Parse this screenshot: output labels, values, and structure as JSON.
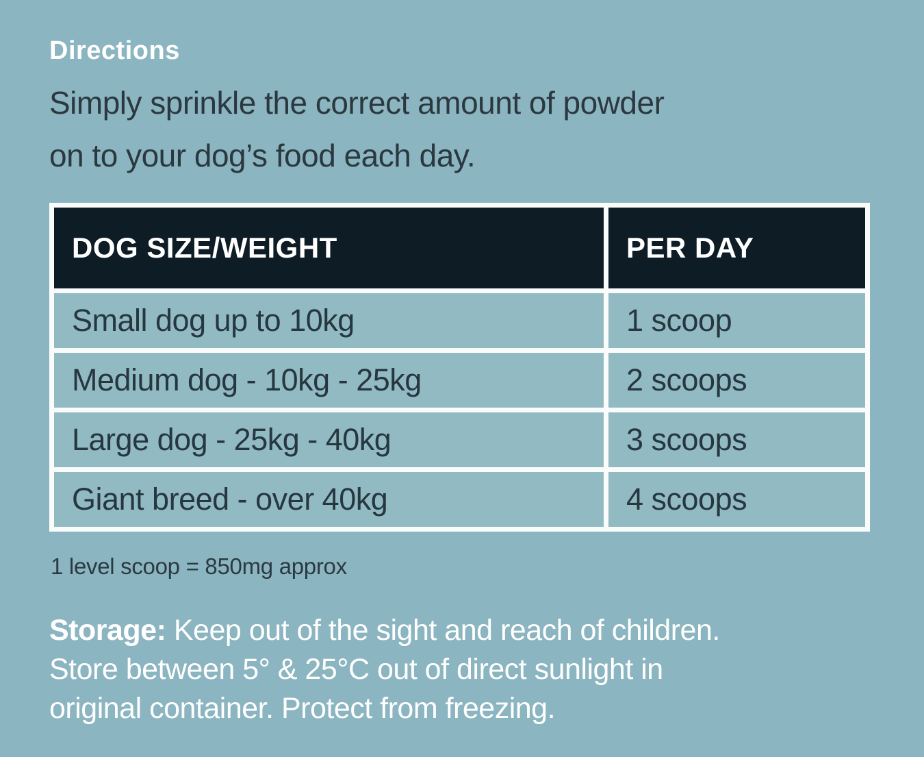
{
  "label": {
    "heading": "Directions",
    "intro_lines": [
      "Simply sprinkle the correct amount of powder",
      "on to your dog’s food each day."
    ],
    "footnote": "1 level scoop = 850mg approx",
    "storage_label": "Storage:",
    "storage_lines": [
      "Keep out of the sight and reach of children.",
      "Store between 5° & 25°C out of direct sunlight in",
      "original container. Protect from freezing."
    ]
  },
  "dosage_table": {
    "columns": [
      "DOG SIZE/WEIGHT",
      "PER DAY"
    ],
    "rows": [
      {
        "size": "Small dog up to 10kg",
        "per_day": "1 scoop"
      },
      {
        "size": "Medium dog - 10kg - 25kg",
        "per_day": "2 scoops"
      },
      {
        "size": "Large dog - 25kg - 40kg",
        "per_day": "3 scoops"
      },
      {
        "size": "Giant breed - over 40kg",
        "per_day": "4 scoops"
      }
    ]
  },
  "colors": {
    "page_background": "#8bb5c0",
    "cell_background": "#92bac3",
    "header_background": "#0e1c26",
    "table_border": "#fafbfb",
    "heading_text": "#ffffff",
    "body_text": "#2b383f",
    "storage_text": "#ffffff"
  }
}
